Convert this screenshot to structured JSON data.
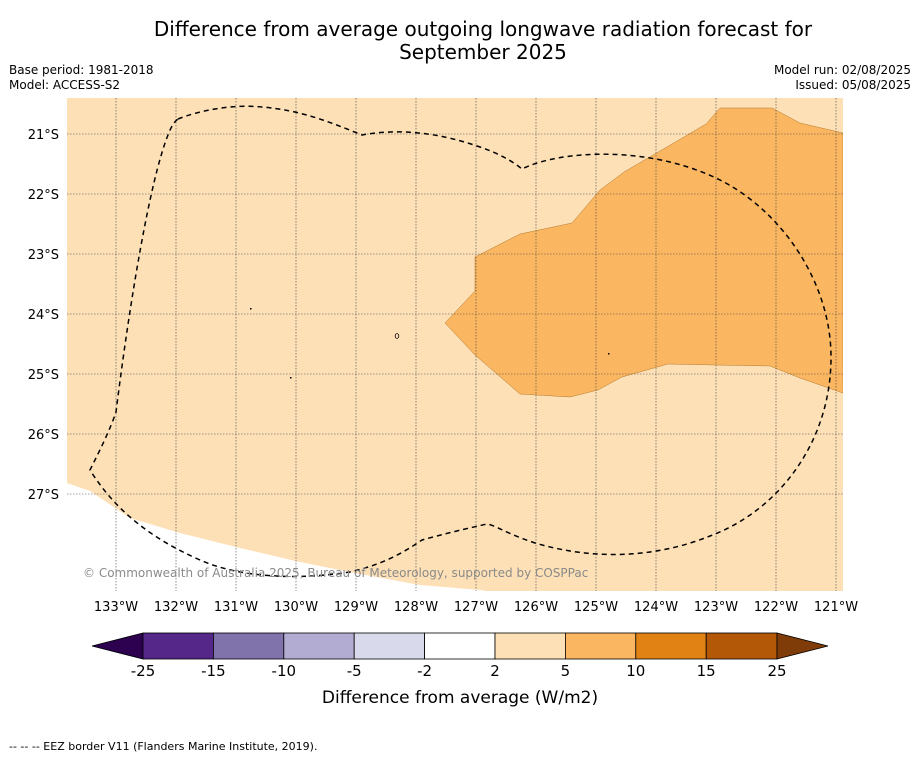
{
  "header": {
    "title_line1": "Difference from average outgoing longwave radiation forecast for",
    "title_line2": "September 2025",
    "base_period": "Base period: 1981-2018",
    "model": "Model: ACCESS-S2",
    "model_run": "Model run: 02/08/2025",
    "issued": "Issued: 05/08/2025"
  },
  "map": {
    "lon_labels": [
      "133°W",
      "132°W",
      "131°W",
      "130°W",
      "129°W",
      "128°W",
      "127°W",
      "126°W",
      "125°W",
      "124°W",
      "123°W",
      "122°W",
      "121°W"
    ],
    "lat_labels": [
      "21°S",
      "22°S",
      "23°S",
      "24°S",
      "25°S",
      "26°S",
      "27°S"
    ],
    "copyright": "© Commonwealth of Australia 2025, Bureau of Meteorology, supported by COSPPac",
    "colors": {
      "band_2_5": "#fde0b6",
      "band_5_10": "#fbb661",
      "missing": "#ffffff",
      "gridline": "#444444",
      "eez_border": "#000000"
    }
  },
  "colorbar": {
    "tick_labels": [
      "-25",
      "-15",
      "-10",
      "-5",
      "-2",
      "2",
      "5",
      "10",
      "15",
      "25"
    ],
    "colors": [
      "#2d0050",
      "#542788",
      "#8073ac",
      "#b2abd2",
      "#d8daeb",
      "#ffffff",
      "#fde0b6",
      "#fbb661",
      "#e08214",
      "#b35806",
      "#7f3b08"
    ],
    "label": "Difference from average (W/m2)"
  },
  "footnote": "-- -- -- EEZ border V11 (Flanders Marine Institute, 2019)."
}
